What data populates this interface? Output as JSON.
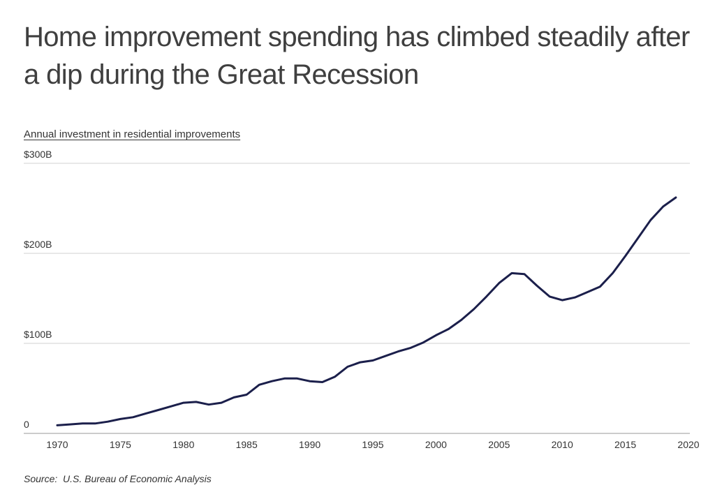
{
  "header": {
    "title": "Home improvement spending has climbed steadily after a dip during the Great Recession"
  },
  "footer": {
    "source": "Source:  U.S. Bureau of Economic Analysis"
  },
  "chart_data": {
    "type": "line",
    "title": "Home improvement spending has climbed steadily after a dip during the Great Recession",
    "subtitle": "Annual investment in residential improvements",
    "xlabel": "",
    "ylabel": "",
    "xlim": [
      1969,
      2020
    ],
    "ylim": [
      0,
      300
    ],
    "x_ticks": [
      1970,
      1975,
      1980,
      1985,
      1990,
      1995,
      2000,
      2005,
      2010,
      2015,
      2020
    ],
    "x_tick_labels": [
      "1970",
      "1975",
      "1980",
      "1985",
      "1990",
      "1995",
      "2000",
      "2005",
      "2010",
      "2015",
      "2020"
    ],
    "y_ticks": [
      0,
      100,
      200,
      300
    ],
    "y_tick_labels": [
      "0",
      "$100B",
      "$200B",
      "$300B"
    ],
    "grid": true,
    "legend": "none",
    "series_color": "#1b1f4b",
    "x": [
      1970,
      1971,
      1972,
      1973,
      1974,
      1975,
      1976,
      1977,
      1978,
      1979,
      1980,
      1981,
      1982,
      1983,
      1984,
      1985,
      1986,
      1987,
      1988,
      1989,
      1990,
      1991,
      1992,
      1993,
      1994,
      1995,
      1996,
      1997,
      1998,
      1999,
      2000,
      2001,
      2002,
      2003,
      2004,
      2005,
      2006,
      2007,
      2008,
      2009,
      2010,
      2011,
      2012,
      2013,
      2014,
      2015,
      2016,
      2017,
      2018,
      2019
    ],
    "values": [
      9,
      10,
      11,
      11,
      13,
      16,
      18,
      22,
      26,
      30,
      34,
      35,
      32,
      34,
      40,
      43,
      54,
      58,
      61,
      61,
      58,
      57,
      63,
      74,
      79,
      81,
      86,
      91,
      95,
      101,
      109,
      116,
      126,
      138,
      152,
      167,
      178,
      177,
      164,
      152,
      148,
      151,
      157,
      163,
      178,
      197,
      217,
      237,
      252,
      262
    ]
  }
}
